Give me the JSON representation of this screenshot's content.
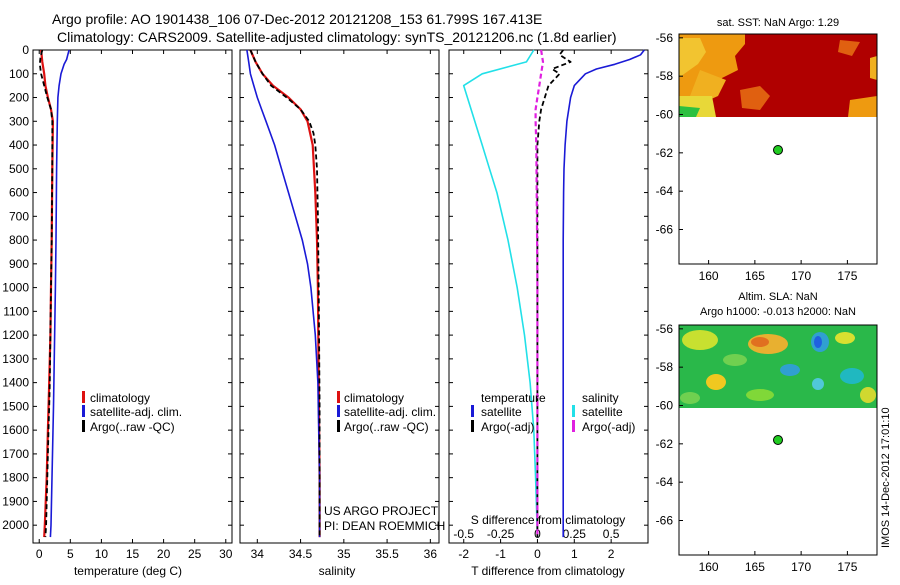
{
  "header": {
    "line1": "Argo profile: AO 1901438_106 07-Dec-2012 20121208_153 61.799S 167.413E",
    "line2": "Climatology: CARS2009. Satellite-adjusted climatology: synTS_20121206.nc (1.8d earlier)"
  },
  "side_label": "IMOS 14-Dec-2012 17:01:10",
  "legend1": {
    "items": [
      "climatology",
      "satellite-adj. clim.",
      "Argo(..raw -QC)"
    ]
  },
  "legend2": {
    "items": [
      "climatology",
      "satellite-adj. clim.",
      "Argo(..raw -QC)"
    ]
  },
  "panel2_note": {
    "line1": "US ARGO PROJECT",
    "line2": "PI: DEAN ROEMMICH"
  },
  "legend3": {
    "left_title": "temperature",
    "left_items": [
      "satellite",
      "Argo(-adj)"
    ],
    "right_title": "salinity",
    "right_items": [
      "satellite",
      "Argo(-adj)"
    ],
    "top_xlabel": "S difference from climatology"
  },
  "colors": {
    "climatology": "#dd1111",
    "satellite": "#1a1ad6",
    "argo": "#000000",
    "temp_diff_sat": "#22e0e8",
    "sal_diff_argo": "#e020e0",
    "map_land_marker": "#22cc22"
  },
  "maps": {
    "sst": {
      "title": "sat. SST: NaN Argo: 1.29",
      "yticks": [
        "-56",
        "-58",
        "-60",
        "-62",
        "-64",
        "-66"
      ],
      "xticks": [
        "160",
        "165",
        "170",
        "175"
      ]
    },
    "sla": {
      "title1": "Altim. SLA: NaN",
      "title2": "Argo h1000: -0.013 h2000: NaN",
      "yticks": [
        "-56",
        "-58",
        "-60",
        "-62",
        "-64",
        "-66"
      ],
      "xticks": [
        "160",
        "165",
        "170",
        "175"
      ]
    },
    "argo_position": {
      "lon": 167.413,
      "lat": -61.799
    }
  },
  "chart_data": [
    {
      "type": "line",
      "xlabel": "temperature (deg C)",
      "ylabel": "",
      "xlim": [
        -1,
        31
      ],
      "ylim": [
        0,
        2075
      ],
      "y_reversed": true,
      "xticks": [
        0,
        5,
        10,
        15,
        20,
        25,
        30
      ],
      "yticks": [
        0,
        100,
        200,
        300,
        400,
        500,
        600,
        700,
        800,
        900,
        1000,
        1100,
        1200,
        1300,
        1400,
        1500,
        1600,
        1700,
        1800,
        1900,
        2000
      ],
      "series": [
        {
          "name": "climatology",
          "y": [
            0,
            50,
            100,
            150,
            200,
            250,
            300,
            500,
            800,
            1000,
            1200,
            1400,
            1600,
            1800,
            2000,
            2050
          ],
          "x": [
            0.3,
            0.5,
            0.8,
            1.0,
            1.4,
            1.9,
            2.2,
            2.1,
            2.0,
            1.9,
            1.8,
            1.6,
            1.4,
            1.2,
            0.9,
            0.8
          ]
        },
        {
          "name": "satellite-adj. clim.",
          "y": [
            0,
            20,
            40,
            60,
            100,
            150,
            200,
            300,
            500,
            800,
            1000,
            1500,
            2000,
            2050
          ],
          "x": [
            4.8,
            4.6,
            4.4,
            4.0,
            3.5,
            3.2,
            3.0,
            2.9,
            2.8,
            2.7,
            2.6,
            2.3,
            1.9,
            1.8
          ]
        },
        {
          "name": "Argo(..raw -QC)",
          "y": [
            0,
            30,
            60,
            100,
            150,
            200,
            250,
            300,
            500,
            800,
            1000,
            1400,
            1500,
            1600,
            1800,
            1900,
            2000,
            2050
          ],
          "x": [
            0.5,
            0.2,
            0.1,
            0.3,
            0.8,
            1.3,
            1.9,
            2.1,
            2.1,
            2.0,
            1.9,
            1.7,
            1.6,
            1.5,
            1.3,
            1.2,
            1.1,
            1.0
          ]
        }
      ]
    },
    {
      "type": "line",
      "xlabel": "salinity",
      "ylabel": "",
      "xlim": [
        33.8,
        36.1
      ],
      "ylim": [
        0,
        2075
      ],
      "y_reversed": true,
      "xticks": [
        34,
        34.5,
        35,
        35.5,
        36
      ],
      "series": [
        {
          "name": "climatology",
          "y": [
            0,
            50,
            100,
            150,
            200,
            250,
            300,
            400,
            600,
            800,
            1000,
            1400,
            1800,
            2050
          ],
          "x": [
            33.92,
            33.98,
            34.06,
            34.18,
            34.36,
            34.5,
            34.58,
            34.64,
            34.67,
            34.69,
            34.7,
            34.71,
            34.72,
            34.72
          ]
        },
        {
          "name": "satellite-adj. clim.",
          "y": [
            0,
            50,
            100,
            150,
            200,
            250,
            300,
            400,
            500,
            600,
            700,
            800,
            900,
            1000,
            1200,
            1400,
            1600,
            1800,
            2050
          ],
          "x": [
            33.88,
            33.9,
            33.92,
            33.96,
            34.0,
            34.05,
            34.1,
            34.2,
            34.28,
            34.36,
            34.44,
            34.52,
            34.58,
            34.62,
            34.67,
            34.7,
            34.71,
            34.72,
            34.72
          ]
        },
        {
          "name": "Argo(..raw -QC)",
          "y": [
            0,
            25,
            50,
            75,
            100,
            150,
            200,
            250,
            300,
            350,
            400,
            500,
            700,
            1000,
            1500,
            2050
          ],
          "x": [
            33.92,
            33.95,
            33.98,
            34.02,
            34.06,
            34.16,
            34.34,
            34.5,
            34.6,
            34.65,
            34.67,
            34.69,
            34.7,
            34.71,
            34.72,
            34.72
          ]
        }
      ]
    },
    {
      "type": "line",
      "xlabel": "T difference from climatology",
      "ylabel": "",
      "xlim": [
        -2.4,
        3.0
      ],
      "ylim": [
        0,
        2075
      ],
      "y_reversed": true,
      "xticks": [
        -2,
        -1,
        0,
        1,
        2
      ],
      "top_xlabel": "S difference from climatology",
      "top_xticks": [
        -0.5,
        -0.25,
        0,
        0.25,
        0.5
      ],
      "series": [
        {
          "name": "temperature satellite",
          "y": [
            0,
            50,
            100,
            150,
            200,
            300,
            400,
            500,
            600,
            800,
            1000,
            1200,
            1400,
            1600,
            1800,
            2050
          ],
          "x": [
            -0.1,
            -0.3,
            -1.5,
            -2.0,
            -1.9,
            -1.7,
            -1.5,
            -1.3,
            -1.1,
            -0.8,
            -0.55,
            -0.35,
            -0.2,
            -0.1,
            -0.05,
            0.0
          ]
        },
        {
          "name": "salinity satellite",
          "y": [
            0,
            20,
            40,
            60,
            80,
            100,
            150,
            200,
            300,
            400,
            500,
            600,
            800,
            1000,
            1200,
            1400,
            1800,
            2050
          ],
          "x": [
            2.9,
            2.8,
            2.5,
            2.1,
            1.6,
            1.3,
            1.0,
            0.9,
            0.8,
            0.75,
            0.72,
            0.71,
            0.7,
            0.7,
            0.7,
            0.7,
            0.7,
            0.7
          ]
        },
        {
          "name": "temperature Argo(-adj)",
          "y": [
            0,
            20,
            50,
            80,
            100,
            150,
            200,
            250,
            300,
            400,
            600,
            1000,
            1500,
            2050
          ],
          "x": [
            0.7,
            0.6,
            0.9,
            0.4,
            0.6,
            0.3,
            0.2,
            0.1,
            0.05,
            0.0,
            0.0,
            0.0,
            0.0,
            0.0
          ]
        },
        {
          "name": "salinity Argo(-adj)",
          "y": [
            0,
            50,
            100,
            150,
            200,
            250,
            300,
            400,
            600,
            800,
            1000,
            1500,
            2050
          ],
          "x": [
            0.1,
            0.15,
            0.1,
            0.05,
            0.0,
            -0.05,
            -0.05,
            -0.03,
            -0.02,
            -0.01,
            0.0,
            0.0,
            0.0
          ]
        }
      ]
    }
  ]
}
